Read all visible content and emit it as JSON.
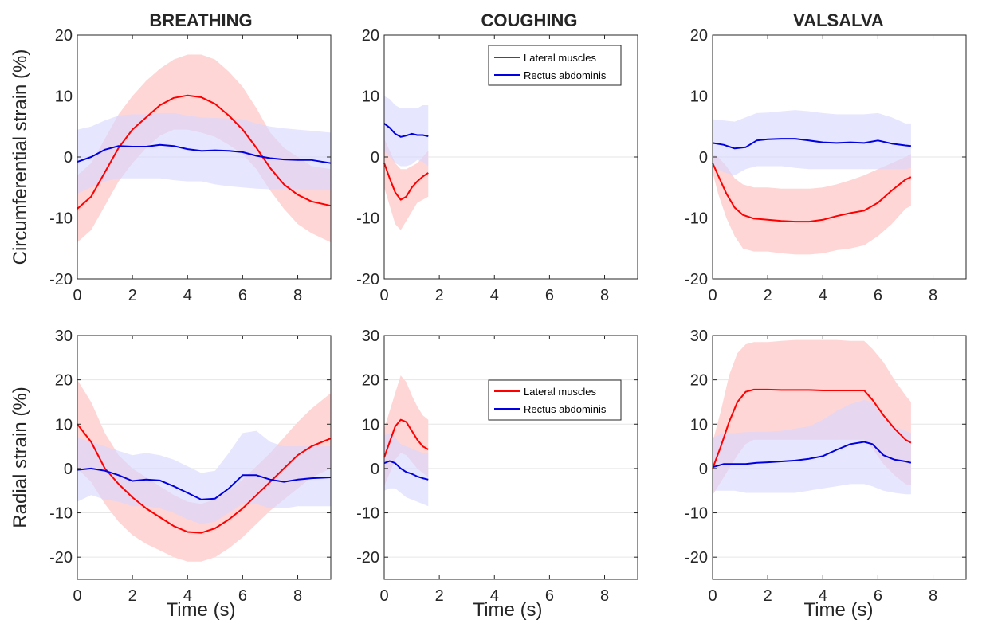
{
  "figure": {
    "column_titles": [
      "BREATHING",
      "COUGHING",
      "VALSALVA"
    ],
    "row_ylabels": [
      "Circumferential strain (%)",
      "Radial strain (%)"
    ],
    "xlabel": "Time (s)"
  },
  "colors": {
    "lateral": "#ff0000",
    "rectus": "#0000e0",
    "lateral_band": "#ffd6d6",
    "rectus_band": "#d6d6ff"
  },
  "legend": {
    "entries": [
      "Lateral muscles",
      "Rectus abdominis"
    ],
    "placement": "top-right, middle column"
  },
  "chart_data": [
    {
      "type": "line",
      "row": 0,
      "col": 0,
      "title": "BREATHING",
      "xlabel": "",
      "ylabel": "Circumferential strain (%)",
      "xlim": [
        0,
        9.2
      ],
      "ylim": [
        -20,
        20
      ],
      "xticks": [
        0,
        2,
        4,
        6,
        8
      ],
      "yticks": [
        -20,
        -10,
        0,
        10,
        20
      ],
      "grid": "horizontal",
      "series": [
        {
          "name": "Lateral muscles",
          "x": [
            0,
            0.5,
            1,
            1.5,
            2,
            2.5,
            3,
            3.5,
            4,
            4.5,
            5,
            5.5,
            6,
            6.5,
            7,
            7.5,
            8,
            8.5,
            9.2
          ],
          "y": [
            -8.5,
            -6.5,
            -2.5,
            1.5,
            4.5,
            6.5,
            8.5,
            9.7,
            10.1,
            9.8,
            8.7,
            6.8,
            4.5,
            1.5,
            -1.8,
            -4.5,
            -6.2,
            -7.3,
            -8
          ],
          "lower": [
            -14,
            -12,
            -8,
            -4,
            -1,
            1.5,
            3.5,
            4.5,
            4.5,
            4,
            3.3,
            2,
            0.5,
            -2,
            -5.5,
            -8.5,
            -11,
            -12.5,
            -14
          ],
          "upper": [
            -3,
            -1,
            3,
            7,
            10,
            12.5,
            14.5,
            16,
            16.8,
            16.8,
            16,
            14,
            11.5,
            8,
            4,
            1.5,
            0,
            -1.5,
            -2
          ]
        },
        {
          "name": "Rectus abdominis",
          "x": [
            0,
            0.5,
            1,
            1.5,
            2,
            2.5,
            3,
            3.5,
            4,
            4.5,
            5,
            5.5,
            6,
            6.5,
            7,
            7.5,
            8,
            8.5,
            9.2
          ],
          "y": [
            -0.8,
            0,
            1.2,
            1.8,
            1.7,
            1.7,
            2,
            1.8,
            1.3,
            1,
            1.1,
            1,
            0.8,
            0.2,
            -0.2,
            -0.4,
            -0.5,
            -0.5,
            -1
          ],
          "lower": [
            -6,
            -5,
            -4,
            -3.5,
            -3.5,
            -3.5,
            -3.5,
            -3.8,
            -4,
            -4,
            -4.5,
            -4.8,
            -5,
            -5.2,
            -5.3,
            -5.3,
            -5.3,
            -5.5,
            -5.5
          ],
          "upper": [
            4.5,
            5,
            6,
            6.8,
            7,
            7,
            7.2,
            7.2,
            6.8,
            6.5,
            6.4,
            6.3,
            6.2,
            5.5,
            5,
            4.7,
            4.5,
            4.3,
            4
          ]
        }
      ]
    },
    {
      "type": "line",
      "row": 0,
      "col": 1,
      "title": "COUGHING",
      "xlabel": "",
      "ylabel": "",
      "xlim": [
        0,
        9.2
      ],
      "ylim": [
        -20,
        20
      ],
      "xticks": [
        0,
        2,
        4,
        6,
        8
      ],
      "yticks": [
        -20,
        -10,
        0,
        10,
        20
      ],
      "grid": "horizontal",
      "series": [
        {
          "name": "Lateral muscles",
          "x": [
            0,
            0.2,
            0.4,
            0.6,
            0.8,
            1,
            1.2,
            1.4,
            1.6
          ],
          "y": [
            -1,
            -3.5,
            -5.8,
            -7,
            -6.5,
            -5,
            -4,
            -3.2,
            -2.6
          ],
          "lower": [
            -5,
            -8,
            -11,
            -12,
            -10.5,
            -9,
            -7.5,
            -7,
            -6.5
          ],
          "upper": [
            3,
            1,
            -1,
            -2,
            -2,
            -1.5,
            -1,
            0,
            1
          ]
        },
        {
          "name": "Rectus abdominis",
          "x": [
            0,
            0.2,
            0.4,
            0.6,
            0.8,
            1,
            1.2,
            1.4,
            1.6
          ],
          "y": [
            5.5,
            4.8,
            3.8,
            3.3,
            3.5,
            3.8,
            3.6,
            3.6,
            3.4
          ],
          "lower": [
            1,
            0,
            -1,
            -1.5,
            -1.5,
            -1.2,
            -0.5,
            -0.8,
            -1.5
          ],
          "upper": [
            10,
            9.5,
            8.5,
            8,
            8,
            8,
            8,
            8.5,
            8.5
          ]
        }
      ]
    },
    {
      "type": "line",
      "row": 0,
      "col": 2,
      "title": "VALSALVA",
      "xlabel": "",
      "ylabel": "",
      "xlim": [
        0,
        9.2
      ],
      "ylim": [
        -20,
        20
      ],
      "xticks": [
        0,
        2,
        4,
        6,
        8
      ],
      "yticks": [
        -20,
        -10,
        0,
        10,
        20
      ],
      "grid": "horizontal",
      "series": [
        {
          "name": "Lateral muscles",
          "x": [
            0,
            0.2,
            0.5,
            0.8,
            1.1,
            1.5,
            2,
            2.5,
            3,
            3.5,
            4,
            4.5,
            5,
            5.5,
            6,
            6.5,
            7,
            7.2
          ],
          "y": [
            -1,
            -3,
            -6,
            -8.3,
            -9.5,
            -10.1,
            -10.3,
            -10.5,
            -10.6,
            -10.6,
            -10.3,
            -9.7,
            -9.2,
            -8.8,
            -7.5,
            -5.5,
            -3.7,
            -3.3
          ],
          "lower": [
            -2.5,
            -6,
            -10,
            -13,
            -15,
            -15.5,
            -15.5,
            -15.8,
            -16,
            -16,
            -15.8,
            -15.3,
            -15,
            -14.5,
            -13,
            -11,
            -8.5,
            -8
          ],
          "upper": [
            0.5,
            0,
            -1.5,
            -3.5,
            -4.5,
            -5,
            -5,
            -5.2,
            -5.2,
            -5.2,
            -5,
            -4.5,
            -3.8,
            -3,
            -2,
            -1,
            0,
            0.5
          ]
        },
        {
          "name": "Rectus abdominis",
          "x": [
            0,
            0.4,
            0.8,
            1.2,
            1.6,
            2,
            2.5,
            3,
            3.5,
            4,
            4.5,
            5,
            5.5,
            6,
            6.5,
            7,
            7.2
          ],
          "y": [
            2.3,
            2,
            1.4,
            1.6,
            2.7,
            2.9,
            3,
            3,
            2.7,
            2.4,
            2.3,
            2.4,
            2.3,
            2.7,
            2.2,
            1.9,
            1.8
          ],
          "lower": [
            -1.5,
            -2.5,
            -3,
            -2,
            -1.5,
            -1.5,
            -1.5,
            -1.8,
            -2,
            -2,
            -2,
            -2,
            -2,
            -2,
            -2,
            -2,
            -1.8
          ],
          "upper": [
            6.2,
            6,
            5.8,
            6.5,
            7.2,
            7.3,
            7.5,
            7.7,
            7.5,
            7.2,
            7,
            7,
            7,
            7.2,
            6.5,
            5.5,
            5.5
          ]
        }
      ]
    },
    {
      "type": "line",
      "row": 1,
      "col": 0,
      "title": "",
      "xlabel": "Time (s)",
      "ylabel": "Radial strain (%)",
      "xlim": [
        0,
        9.2
      ],
      "ylim": [
        -25,
        30
      ],
      "xticks": [
        0,
        2,
        4,
        6,
        8
      ],
      "yticks": [
        -20,
        -10,
        0,
        10,
        20,
        30
      ],
      "grid": "horizontal",
      "series": [
        {
          "name": "Lateral muscles",
          "x": [
            0,
            0.5,
            1,
            1.5,
            2,
            2.5,
            3,
            3.5,
            4,
            4.5,
            5,
            5.5,
            6,
            6.5,
            7,
            7.5,
            8,
            8.5,
            9.2
          ],
          "y": [
            10,
            6,
            0,
            -3.5,
            -6.5,
            -9,
            -11,
            -13,
            -14.3,
            -14.5,
            -13.5,
            -11.5,
            -9,
            -6,
            -3,
            0,
            3,
            5,
            6.8
          ],
          "lower": [
            0,
            -3,
            -8,
            -12,
            -15,
            -17,
            -18.5,
            -20,
            -21,
            -21,
            -20,
            -18,
            -15.5,
            -12.5,
            -9.5,
            -7,
            -4.5,
            -2,
            0
          ],
          "upper": [
            20,
            15,
            8,
            3,
            0,
            -2,
            -4,
            -6,
            -7.5,
            -8,
            -7,
            -5,
            -2.5,
            0.5,
            3.5,
            7,
            10.5,
            13.5,
            17
          ]
        },
        {
          "name": "Rectus abdominis",
          "x": [
            0,
            0.5,
            1,
            1.5,
            2,
            2.5,
            3,
            3.5,
            4,
            4.5,
            5,
            5.5,
            6,
            6.5,
            7,
            7.5,
            8,
            8.5,
            9.2
          ],
          "y": [
            -0.3,
            0,
            -0.5,
            -1.5,
            -2.8,
            -2.5,
            -2.7,
            -4,
            -5.5,
            -7,
            -6.8,
            -4.5,
            -1.5,
            -1.5,
            -2.5,
            -3,
            -2.5,
            -2.2,
            -2
          ],
          "lower": [
            -7.5,
            -6,
            -7,
            -7.5,
            -8.5,
            -8.5,
            -9,
            -10,
            -11.5,
            -12.5,
            -12,
            -10,
            -8,
            -8,
            -9,
            -9,
            -8.5,
            -8.5,
            -8.5
          ],
          "upper": [
            7,
            6,
            5,
            4,
            3,
            3.5,
            3,
            2,
            0.5,
            -1,
            -0.5,
            3.5,
            8,
            8.5,
            6,
            5,
            5,
            5,
            5
          ]
        }
      ]
    },
    {
      "type": "line",
      "row": 1,
      "col": 1,
      "title": "",
      "xlabel": "Time (s)",
      "ylabel": "",
      "xlim": [
        0,
        9.2
      ],
      "ylim": [
        -25,
        30
      ],
      "xticks": [
        0,
        2,
        4,
        6,
        8
      ],
      "yticks": [
        -20,
        -10,
        0,
        10,
        20,
        30
      ],
      "grid": "horizontal",
      "series": [
        {
          "name": "Lateral muscles",
          "x": [
            0,
            0.2,
            0.4,
            0.6,
            0.8,
            1,
            1.2,
            1.4,
            1.6
          ],
          "y": [
            2.5,
            6,
            9.5,
            11,
            10.5,
            8.5,
            6.5,
            5,
            4.3
          ],
          "lower": [
            -4,
            -1,
            2,
            3.5,
            3,
            1.5,
            0,
            -1,
            -2
          ],
          "upper": [
            9,
            13,
            17,
            21,
            19.5,
            16.5,
            14,
            12,
            11
          ]
        },
        {
          "name": "Rectus abdominis",
          "x": [
            0,
            0.2,
            0.4,
            0.6,
            0.8,
            1,
            1.2,
            1.4,
            1.6
          ],
          "y": [
            1.2,
            1.7,
            1.2,
            0,
            -0.8,
            -1.2,
            -1.8,
            -2.2,
            -2.5
          ],
          "lower": [
            -5,
            -4.5,
            -4.5,
            -5.5,
            -6.5,
            -7,
            -7.5,
            -8,
            -8.5
          ],
          "upper": [
            7.5,
            8,
            7,
            5.5,
            5,
            4.5,
            4,
            3.5,
            3.5
          ]
        }
      ]
    },
    {
      "type": "line",
      "row": 1,
      "col": 2,
      "title": "",
      "xlabel": "Time (s)",
      "ylabel": "",
      "xlim": [
        0,
        9.2
      ],
      "ylim": [
        -25,
        30
      ],
      "xticks": [
        0,
        2,
        4,
        6,
        8
      ],
      "yticks": [
        -20,
        -10,
        0,
        10,
        20,
        30
      ],
      "grid": "horizontal",
      "series": [
        {
          "name": "Lateral muscles",
          "x": [
            0,
            0.3,
            0.6,
            0.9,
            1.2,
            1.5,
            2,
            2.5,
            3,
            3.5,
            4,
            4.5,
            5,
            5.5,
            5.8,
            6.2,
            6.6,
            7,
            7.2
          ],
          "y": [
            0,
            5,
            10.5,
            15,
            17.3,
            17.8,
            17.8,
            17.7,
            17.7,
            17.7,
            17.6,
            17.6,
            17.6,
            17.6,
            15.5,
            12,
            9,
            6.5,
            5.8
          ],
          "lower": [
            -6,
            -3,
            0,
            3,
            5.5,
            6.5,
            6.5,
            6.5,
            6.5,
            6.5,
            6.5,
            6.5,
            6.5,
            6.5,
            4.5,
            1,
            -1.5,
            -3.5,
            -3.8
          ],
          "upper": [
            6,
            13,
            21,
            26,
            28,
            28.5,
            28.5,
            28.8,
            29,
            29,
            29,
            29,
            28.8,
            28.8,
            27,
            24,
            20,
            16.5,
            15
          ]
        },
        {
          "name": "Rectus abdominis",
          "x": [
            0,
            0.4,
            0.8,
            1.2,
            1.6,
            2,
            2.5,
            3,
            3.5,
            4,
            4.5,
            5,
            5.5,
            5.8,
            6.2,
            6.6,
            7,
            7.2
          ],
          "y": [
            0.3,
            1,
            1,
            1,
            1.3,
            1.4,
            1.6,
            1.8,
            2.2,
            2.8,
            4.2,
            5.5,
            6,
            5.5,
            3,
            2,
            1.6,
            1.3
          ],
          "lower": [
            -5,
            -5,
            -5,
            -5.5,
            -5.5,
            -5.5,
            -5.5,
            -5.5,
            -5,
            -4.5,
            -4,
            -3.5,
            -3.5,
            -4,
            -5,
            -5.5,
            -5.8,
            -5.8
          ],
          "upper": [
            7,
            8,
            8,
            8.2,
            8.3,
            8.3,
            8.5,
            9,
            9.5,
            11,
            13,
            14.5,
            15.5,
            15,
            11.5,
            9.5,
            8.5,
            8
          ]
        }
      ]
    }
  ]
}
